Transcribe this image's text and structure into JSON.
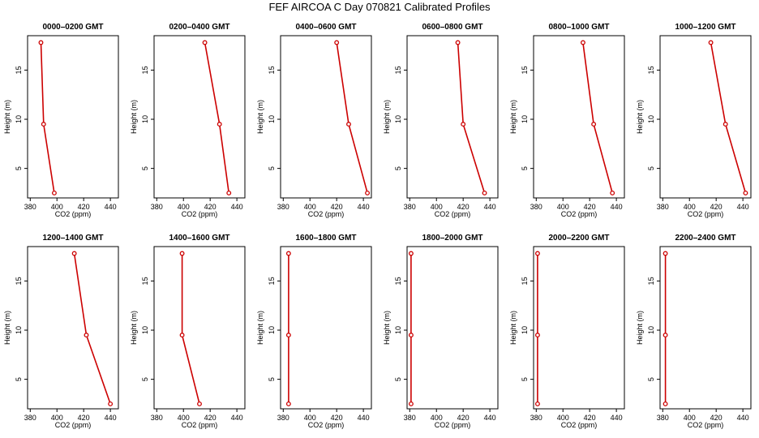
{
  "title": "FEF AIRCOA C  Day 070821  Calibrated Profiles",
  "colors": {
    "line": "#cc0000",
    "axis": "#000000",
    "background": "#ffffff"
  },
  "chart_data": [
    {
      "type": "line",
      "title": "0000–0200 GMT",
      "xlabel": "CO2 (ppm)",
      "ylabel": "Height (m)",
      "xlim": [
        378,
        446
      ],
      "ylim": [
        2,
        18.5
      ],
      "xticks": [
        "380",
        "400",
        "420",
        "440"
      ],
      "yticks": [
        "5",
        "10",
        "15"
      ],
      "x": [
        398,
        390,
        388
      ],
      "y": [
        2.5,
        9.5,
        17.8
      ]
    },
    {
      "type": "line",
      "title": "0200–0400 GMT",
      "xlabel": "CO2 (ppm)",
      "ylabel": "Height (m)",
      "xlim": [
        378,
        446
      ],
      "ylim": [
        2,
        18.5
      ],
      "xticks": [
        "380",
        "400",
        "420",
        "440"
      ],
      "yticks": [
        "5",
        "10",
        "15"
      ],
      "x": [
        434,
        427,
        416
      ],
      "y": [
        2.5,
        9.5,
        17.8
      ]
    },
    {
      "type": "line",
      "title": "0400–0600 GMT",
      "xlabel": "CO2 (ppm)",
      "ylabel": "Height (m)",
      "xlim": [
        378,
        446
      ],
      "ylim": [
        2,
        18.5
      ],
      "xticks": [
        "380",
        "400",
        "420",
        "440"
      ],
      "yticks": [
        "5",
        "10",
        "15"
      ],
      "x": [
        443,
        429,
        420
      ],
      "y": [
        2.5,
        9.5,
        17.8
      ]
    },
    {
      "type": "line",
      "title": "0600–0800 GMT",
      "xlabel": "CO2 (ppm)",
      "ylabel": "Height (m)",
      "xlim": [
        378,
        446
      ],
      "ylim": [
        2,
        18.5
      ],
      "xticks": [
        "380",
        "400",
        "420",
        "440"
      ],
      "yticks": [
        "5",
        "10",
        "15"
      ],
      "x": [
        436,
        420,
        416
      ],
      "y": [
        2.5,
        9.5,
        17.8
      ]
    },
    {
      "type": "line",
      "title": "0800–1000 GMT",
      "xlabel": "CO2 (ppm)",
      "ylabel": "Height (m)",
      "xlim": [
        378,
        446
      ],
      "ylim": [
        2,
        18.5
      ],
      "xticks": [
        "380",
        "400",
        "420",
        "440"
      ],
      "yticks": [
        "5",
        "10",
        "15"
      ],
      "x": [
        437,
        423,
        415
      ],
      "y": [
        2.5,
        9.5,
        17.8
      ]
    },
    {
      "type": "line",
      "title": "1000–1200 GMT",
      "xlabel": "CO2 (ppm)",
      "ylabel": "Height (m)",
      "xlim": [
        378,
        446
      ],
      "ylim": [
        2,
        18.5
      ],
      "xticks": [
        "380",
        "400",
        "420",
        "440"
      ],
      "yticks": [
        "5",
        "10",
        "15"
      ],
      "x": [
        442,
        427,
        416
      ],
      "y": [
        2.5,
        9.5,
        17.8
      ]
    },
    {
      "type": "line",
      "title": "1200–1400 GMT",
      "xlabel": "CO2 (ppm)",
      "ylabel": "Height (m)",
      "xlim": [
        378,
        446
      ],
      "ylim": [
        2,
        18.5
      ],
      "xticks": [
        "380",
        "400",
        "420",
        "440"
      ],
      "yticks": [
        "5",
        "10",
        "15"
      ],
      "x": [
        440,
        422,
        413
      ],
      "y": [
        2.5,
        9.5,
        17.8
      ]
    },
    {
      "type": "line",
      "title": "1400–1600 GMT",
      "xlabel": "CO2 (ppm)",
      "ylabel": "Height (m)",
      "xlim": [
        378,
        446
      ],
      "ylim": [
        2,
        18.5
      ],
      "xticks": [
        "380",
        "400",
        "420",
        "440"
      ],
      "yticks": [
        "5",
        "10",
        "15"
      ],
      "x": [
        412,
        399,
        399
      ],
      "y": [
        2.5,
        9.5,
        17.8
      ]
    },
    {
      "type": "line",
      "title": "1600–1800 GMT",
      "xlabel": "CO2 (ppm)",
      "ylabel": "Height (m)",
      "xlim": [
        378,
        446
      ],
      "ylim": [
        2,
        18.5
      ],
      "xticks": [
        "380",
        "400",
        "420",
        "440"
      ],
      "yticks": [
        "5",
        "10",
        "15"
      ],
      "x": [
        384,
        384,
        384
      ],
      "y": [
        2.5,
        9.5,
        17.8
      ]
    },
    {
      "type": "line",
      "title": "1800–2000 GMT",
      "xlabel": "CO2 (ppm)",
      "ylabel": "Height (m)",
      "xlim": [
        378,
        446
      ],
      "ylim": [
        2,
        18.5
      ],
      "xticks": [
        "380",
        "400",
        "420",
        "440"
      ],
      "yticks": [
        "5",
        "10",
        "15"
      ],
      "x": [
        381,
        381,
        381
      ],
      "y": [
        2.5,
        9.5,
        17.8
      ]
    },
    {
      "type": "line",
      "title": "2000–2200 GMT",
      "xlabel": "CO2 (ppm)",
      "ylabel": "Height (m)",
      "xlim": [
        378,
        446
      ],
      "ylim": [
        2,
        18.5
      ],
      "xticks": [
        "380",
        "400",
        "420",
        "440"
      ],
      "yticks": [
        "5",
        "10",
        "15"
      ],
      "x": [
        381,
        381,
        381
      ],
      "y": [
        2.5,
        9.5,
        17.8
      ]
    },
    {
      "type": "line",
      "title": "2200–2400 GMT",
      "xlabel": "CO2 (ppm)",
      "ylabel": "Height (m)",
      "xlim": [
        378,
        446
      ],
      "ylim": [
        2,
        18.5
      ],
      "xticks": [
        "380",
        "400",
        "420",
        "440"
      ],
      "yticks": [
        "5",
        "10",
        "15"
      ],
      "x": [
        382,
        382,
        382
      ],
      "y": [
        2.5,
        9.5,
        17.8
      ]
    }
  ]
}
